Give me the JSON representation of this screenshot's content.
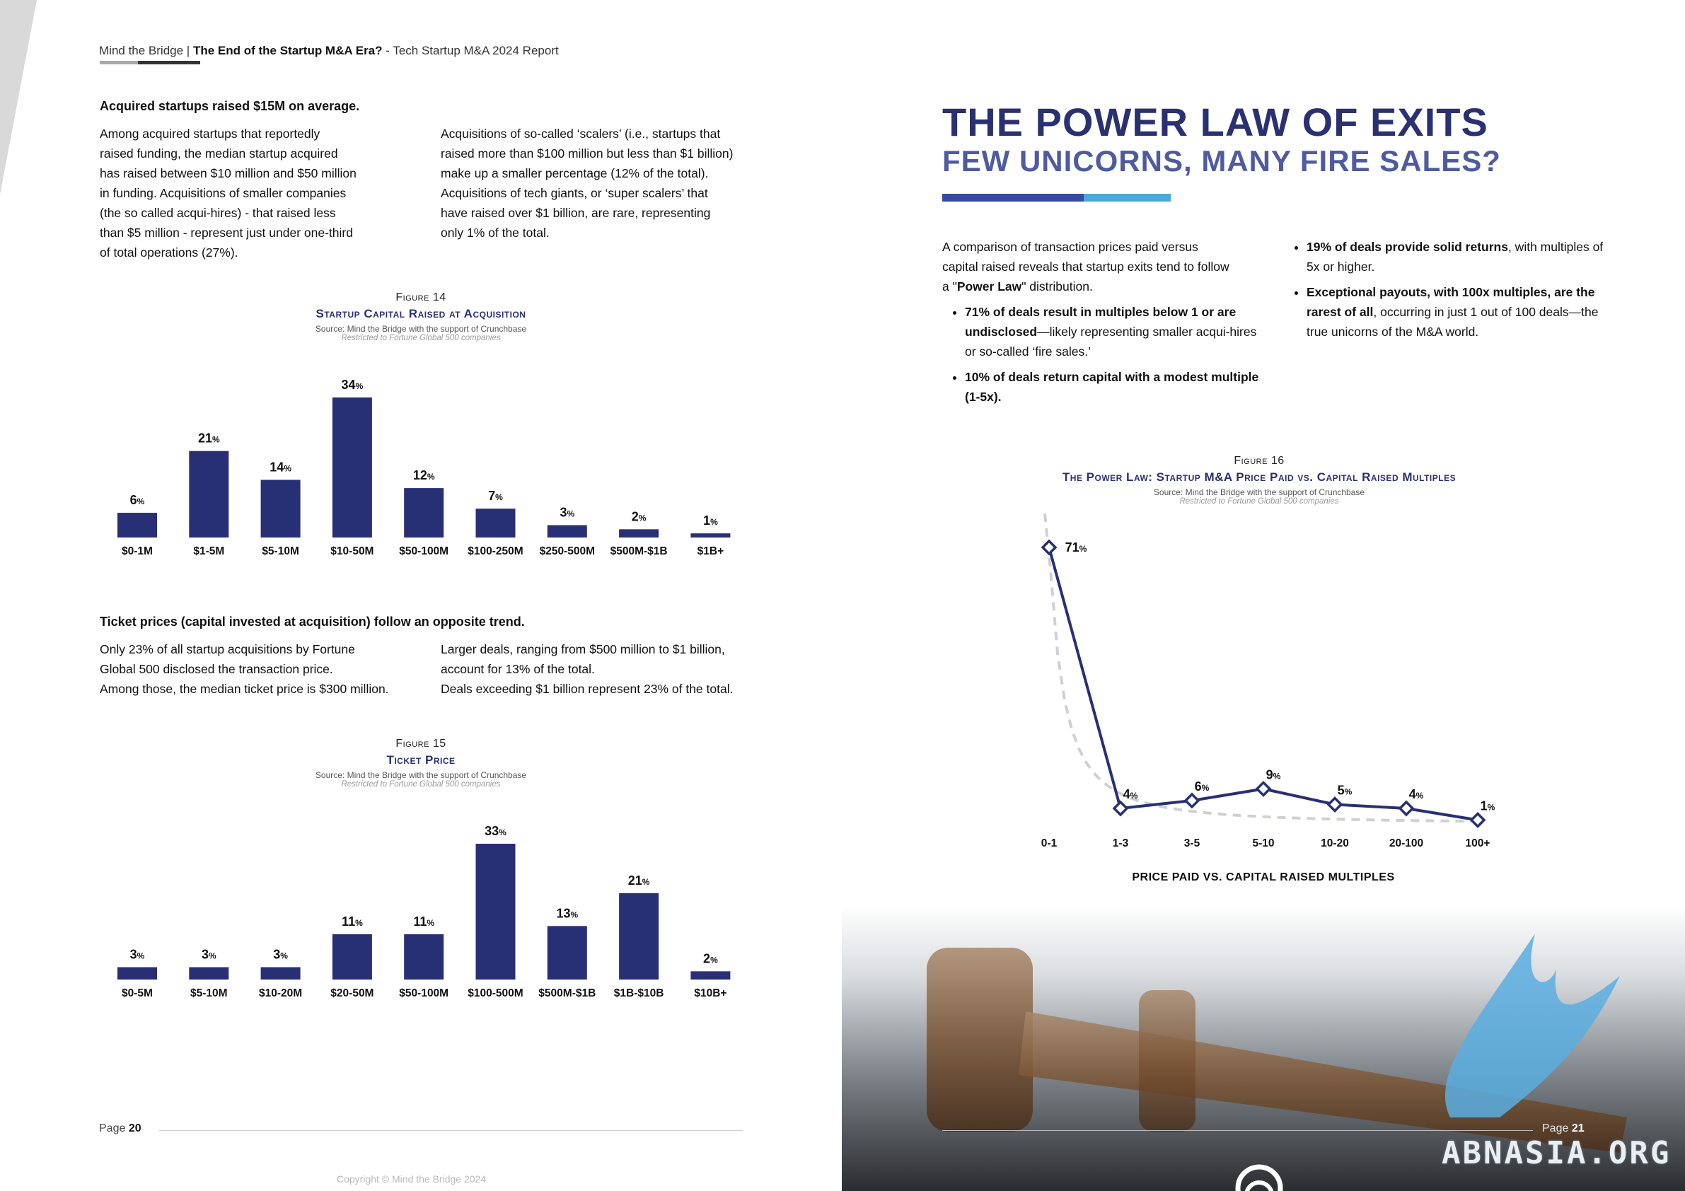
{
  "left_page": {
    "header": {
      "brand": "Mind the Bridge | ",
      "report_title": "The End of the Startup M&A Era?",
      "report_sub": " - Tech Startup M&A 2024 Report"
    },
    "section1": {
      "lead": "Acquired startups raised $15M on average.",
      "col1": "Among acquired startups that reportedly\nraised funding, the median startup acquired\nhas raised between $10 million and $50 million\nin funding. Acquisitions of smaller companies\n(the so called acqui-hires) - that raised less\nthan $5 million - represent just under one-third\nof total operations (27%).",
      "col2": "Acquisitions of so-called ‘scalers’ (i.e., startups that\nraised more than $100 million but less than $1 billion)\nmake up a smaller percentage (12% of the total).\nAcquisitions of tech giants, or ‘super scalers’ that\nhave raised over $1 billion, are rare, representing\nonly 1% of the total."
    },
    "figure14": {
      "number": "Figure 14",
      "title": "Startup Capital Raised at Acquisition",
      "source": "Source: Mind the Bridge with the support of Crunchbase",
      "note": "Restricted to Fortune Global 500 companies"
    },
    "section2": {
      "lead": "Ticket prices (capital invested at acquisition) follow an opposite trend.",
      "col1": "Only 23% of all startup acquisitions by Fortune\nGlobal 500 disclosed the transaction price.\nAmong those, the median ticket price is $300 million.",
      "col2": "Larger deals, ranging from $500 million to $1 billion,\naccount for 13% of the total.\nDeals exceeding $1 billion represent 23% of the total."
    },
    "figure15": {
      "number": "Figure 15",
      "title": "Ticket Price",
      "source": "Source: Mind the Bridge with the support of Crunchbase",
      "note": "Restricted to Fortune Global 500 companies"
    },
    "footer": {
      "page_label": "Page ",
      "page_number": "20",
      "copyright": "Copyright © Mind the Bridge 2024"
    }
  },
  "right_page": {
    "title": "THE POWER LAW OF EXITS",
    "subtitle": "FEW UNICORNS, MANY FIRE SALES?",
    "intro_a": "A comparison of transaction prices paid versus",
    "intro_b": "capital raised reveals that startup exits tend to follow",
    "intro_c1": "a \"",
    "intro_c_bold": "Power Law",
    "intro_c2": "\" distribution.",
    "bullet1_bold": "71% of deals result in multiples below 1 or are undisclosed",
    "bullet1_rest": "—likely representing smaller acqui-hires or so-called ‘fire sales.’",
    "bullet2_bold": "10% of deals return capital with a modest multiple (1-5x).",
    "bullet3_bold": "19% of deals provide solid returns",
    "bullet3_rest": ", with multiples of 5x or higher.",
    "bullet4_bold": "Exceptional payouts, with 100x multiples, are the rarest of all",
    "bullet4_rest": ", occurring in just 1 out of 100 deals—the true unicorns of the M&A world.",
    "figure16": {
      "number": "Figure 16",
      "title": "The Power Law: Startup M&A Price Paid vs. Capital Raised Multiples",
      "source": "Source: Mind the Bridge with the support of Crunchbase",
      "note": "Restricted to Fortune Global 500 companies"
    },
    "footer": {
      "page_label": "Page ",
      "page_number": "21"
    },
    "watermark": "ABNASIA.ORG"
  },
  "colors": {
    "bar": "#283075",
    "accent_blue": "#4aa8dc",
    "title_navy": "#2a3171",
    "trend_dashed": "#cfd0d6"
  },
  "chart_data": [
    {
      "id": "figure14",
      "type": "bar",
      "title": "Startup Capital Raised at Acquisition",
      "categories": [
        "$0-1M",
        "$1-5M",
        "$5-10M",
        "$10-50M",
        "$50-100M",
        "$100-250M",
        "$250-500M",
        "$500M-$1B",
        "$1B+"
      ],
      "values": [
        6,
        21,
        14,
        34,
        12,
        7,
        3,
        2,
        1
      ],
      "value_suffix": "%",
      "ylim": [
        0,
        34
      ],
      "grid": false
    },
    {
      "id": "figure15",
      "type": "bar",
      "title": "Ticket Price",
      "categories": [
        "$0-5M",
        "$5-10M",
        "$10-20M",
        "$20-50M",
        "$50-100M",
        "$100-500M",
        "$500M-$1B",
        "$1B-$10B",
        "$10B+"
      ],
      "values": [
        3,
        3,
        3,
        11,
        11,
        33,
        13,
        21,
        2
      ],
      "value_suffix": "%",
      "ylim": [
        0,
        33
      ],
      "grid": false
    },
    {
      "id": "figure16",
      "type": "line",
      "title": "The Power Law: Startup M&A Price Paid vs. Capital Raised Multiples",
      "categories": [
        "0-1",
        "1-3",
        "3-5",
        "5-10",
        "10-20",
        "20-100",
        "100+"
      ],
      "values": [
        71,
        4,
        6,
        9,
        5,
        4,
        1
      ],
      "value_suffix": "%",
      "xlabel": "PRICE PAID VS. CAPITAL RAISED MULTIPLES",
      "ylim": [
        0,
        71
      ],
      "trendline": "dashed power-law curve",
      "grid": false
    }
  ]
}
